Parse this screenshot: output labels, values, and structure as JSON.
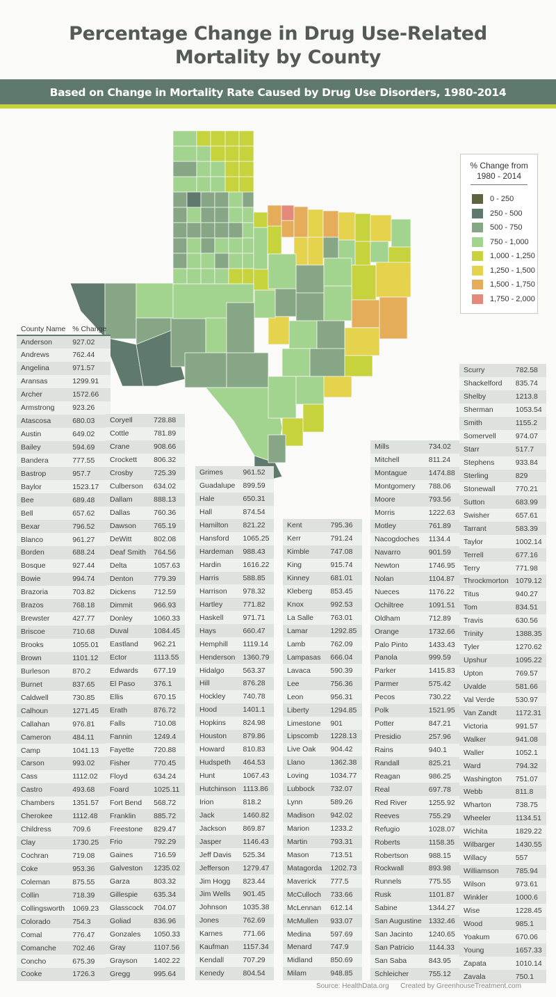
{
  "title_line1": "Percentage Change in Drug Use-Related",
  "title_line2": "Mortality by County",
  "subtitle": "Based on Change in Mortality Rate Caused by Drug Use Disorders, 1980-2014",
  "legend": {
    "title_line1": "% Change from",
    "title_line2": "1980 - 2014",
    "items": [
      {
        "label": "0 - 250",
        "color": "#5e6440"
      },
      {
        "label": "250 - 500",
        "color": "#5f7a6c"
      },
      {
        "label": "500 - 750",
        "color": "#86a686"
      },
      {
        "label": "750 - 1,000",
        "color": "#a3d48f"
      },
      {
        "label": "1,000 - 1,250",
        "color": "#c6d33c"
      },
      {
        "label": "1,250 - 1,500",
        "color": "#e5d24d"
      },
      {
        "label": "1,500 - 1,750",
        "color": "#e5ac5a"
      },
      {
        "label": "1,750 - 2,000",
        "color": "#e48a7a"
      }
    ]
  },
  "table_header": {
    "name": "County Name",
    "value": "% Change"
  },
  "footer": {
    "source": "Source: HealthData.org",
    "credit": "Created by GreenhouseTreatment.com"
  },
  "chart_data": {
    "type": "table",
    "title": "Percentage Change in Drug Use-Related Mortality by County",
    "subtitle": "Based on Change in Mortality Rate Caused by Drug Use Disorders, 1980-2014",
    "columns": [
      "County Name",
      "% Change"
    ],
    "map_legend_bins": [
      "0 - 250",
      "250 - 500",
      "500 - 750",
      "750 - 1,000",
      "1,000 - 1,250",
      "1,250 - 1,500",
      "1,500 - 1,750",
      "1,750 - 2,000"
    ],
    "table_columns": [
      [
        [
          "Anderson",
          "927.02"
        ],
        [
          "Andrews",
          "762.44"
        ],
        [
          "Angelina",
          "971.57"
        ],
        [
          "Aransas",
          "1299.91"
        ],
        [
          "Archer",
          "1572.66"
        ],
        [
          "Armstrong",
          "923.26"
        ],
        [
          "Atascosa",
          "680.03"
        ],
        [
          "Austin",
          "649.02"
        ],
        [
          "Bailey",
          "594.69"
        ],
        [
          "Bandera",
          "777.55"
        ],
        [
          "Bastrop",
          "957.7"
        ],
        [
          "Baylor",
          "1523.17"
        ],
        [
          "Bee",
          "689.48"
        ],
        [
          "Bell",
          "657.62"
        ],
        [
          "Bexar",
          "796.52"
        ],
        [
          "Blanco",
          "961.27"
        ],
        [
          "Borden",
          "688.24"
        ],
        [
          "Bosque",
          "927.44"
        ],
        [
          "Bowie",
          "994.74"
        ],
        [
          "Brazoria",
          "703.82"
        ],
        [
          "Brazos",
          "768.18"
        ],
        [
          "Brewster",
          "427.77"
        ],
        [
          "Briscoe",
          "710.68"
        ],
        [
          "Brooks",
          "1055.01"
        ],
        [
          "Brown",
          "1101.12"
        ],
        [
          "Burleson",
          "870.2"
        ],
        [
          "Burnet",
          "837.65"
        ],
        [
          "Caldwell",
          "730.85"
        ],
        [
          "Calhoun",
          "1271.45"
        ],
        [
          "Callahan",
          "976.81"
        ],
        [
          "Cameron",
          "484.11"
        ],
        [
          "Camp",
          "1041.13"
        ],
        [
          "Carson",
          "993.02"
        ],
        [
          "Cass",
          "1112.02"
        ],
        [
          "Castro",
          "493.68"
        ],
        [
          "Chambers",
          "1351.57"
        ],
        [
          "Cherokee",
          "1112.48"
        ],
        [
          "Childress",
          "709.6"
        ],
        [
          "Clay",
          "1730.25"
        ],
        [
          "Cochran",
          "719.08"
        ],
        [
          "Coke",
          "953.36"
        ],
        [
          "Coleman",
          "875.55"
        ],
        [
          "Collin",
          "718.39"
        ],
        [
          "Collingsworth",
          "1069.23"
        ],
        [
          "Colorado",
          "754.3"
        ],
        [
          "Comal",
          "776.47"
        ],
        [
          "Comanche",
          "702.46"
        ],
        [
          "Concho",
          "675.39"
        ],
        [
          "Cooke",
          "1726.3"
        ]
      ],
      [
        [
          "Coryell",
          "728.88"
        ],
        [
          "Cottle",
          "781.89"
        ],
        [
          "Crane",
          "908.66"
        ],
        [
          "Crockett",
          "806.32"
        ],
        [
          "Crosby",
          "725.39"
        ],
        [
          "Culberson",
          "634.02"
        ],
        [
          "Dallam",
          "888.13"
        ],
        [
          "Dallas",
          "760.36"
        ],
        [
          "Dawson",
          "765.19"
        ],
        [
          "DeWitt",
          "802.08"
        ],
        [
          "Deaf Smith",
          "764.56"
        ],
        [
          "Delta",
          "1057.63"
        ],
        [
          "Denton",
          "779.39"
        ],
        [
          "Dickens",
          "712.59"
        ],
        [
          "Dimmit",
          "966.93"
        ],
        [
          "Donley",
          "1060.33"
        ],
        [
          "Duval",
          "1084.45"
        ],
        [
          "Eastland",
          "962.21"
        ],
        [
          "Ector",
          "1113.55"
        ],
        [
          "Edwards",
          "677.19"
        ],
        [
          "El Paso",
          "376.1"
        ],
        [
          "Ellis",
          "670.15"
        ],
        [
          "Erath",
          "876.72"
        ],
        [
          "Falls",
          "710.08"
        ],
        [
          "Fannin",
          "1249.4"
        ],
        [
          "Fayette",
          "720.88"
        ],
        [
          "Fisher",
          "770.45"
        ],
        [
          "Floyd",
          "634.24"
        ],
        [
          "Foard",
          "1025.11"
        ],
        [
          "Fort Bend",
          "568.72"
        ],
        [
          "Franklin",
          "885.72"
        ],
        [
          "Freestone",
          "829.47"
        ],
        [
          "Frio",
          "792.29"
        ],
        [
          "Gaines",
          "716.59"
        ],
        [
          "Galveston",
          "1235.02"
        ],
        [
          "Garza",
          "803.32"
        ],
        [
          "Gillespie",
          "635.34"
        ],
        [
          "Glasscock",
          "704.07"
        ],
        [
          "Goliad",
          "836.96"
        ],
        [
          "Gonzales",
          "1050.33"
        ],
        [
          "Gray",
          "1107.56"
        ],
        [
          "Grayson",
          "1402.22"
        ],
        [
          "Gregg",
          "995.64"
        ]
      ],
      [
        [
          "Grimes",
          "961.52"
        ],
        [
          "Guadalupe",
          "899.59"
        ],
        [
          "Hale",
          "650.31"
        ],
        [
          "Hall",
          "874.54"
        ],
        [
          "Hamilton",
          "821.22"
        ],
        [
          "Hansford",
          "1065.25"
        ],
        [
          "Hardeman",
          "988.43"
        ],
        [
          "Hardin",
          "1616.22"
        ],
        [
          "Harris",
          "588.85"
        ],
        [
          "Harrison",
          "978.32"
        ],
        [
          "Hartley",
          "771.82"
        ],
        [
          "Haskell",
          "971.71"
        ],
        [
          "Hays",
          "660.47"
        ],
        [
          "Hemphill",
          "1119.14"
        ],
        [
          "Henderson",
          "1360.79"
        ],
        [
          "Hidalgo",
          "563.37"
        ],
        [
          "Hill",
          "876.28"
        ],
        [
          "Hockley",
          "740.78"
        ],
        [
          "Hood",
          "1401.1"
        ],
        [
          "Hopkins",
          "824.98"
        ],
        [
          "Houston",
          "879.86"
        ],
        [
          "Howard",
          "810.83"
        ],
        [
          "Hudspeth",
          "464.53"
        ],
        [
          "Hunt",
          "1067.43"
        ],
        [
          "Hutchinson",
          "1113.86"
        ],
        [
          "Irion",
          "818.2"
        ],
        [
          "Jack",
          "1460.82"
        ],
        [
          "Jackson",
          "869.87"
        ],
        [
          "Jasper",
          "1146.43"
        ],
        [
          "Jeff Davis",
          "525.34"
        ],
        [
          "Jefferson",
          "1279.47"
        ],
        [
          "Jim Hogg",
          "823.44"
        ],
        [
          "Jim Wells",
          "901.45"
        ],
        [
          "Johnson",
          "1035.38"
        ],
        [
          "Jones",
          "762.69"
        ],
        [
          "Karnes",
          "771.66"
        ],
        [
          "Kaufman",
          "1157.34"
        ],
        [
          "Kendall",
          "707.29"
        ],
        [
          "Kenedy",
          "804.54"
        ]
      ],
      [
        [
          "Kent",
          "795.36"
        ],
        [
          "Kerr",
          "791.24"
        ],
        [
          "Kimble",
          "747.08"
        ],
        [
          "King",
          "915.74"
        ],
        [
          "Kinney",
          "681.01"
        ],
        [
          "Kleberg",
          "853.45"
        ],
        [
          "Knox",
          "992.53"
        ],
        [
          "La Salle",
          "763.01"
        ],
        [
          "Lamar",
          "1292.85"
        ],
        [
          "Lamb",
          "762.09"
        ],
        [
          "Lampasas",
          "666.04"
        ],
        [
          "Lavaca",
          "590.39"
        ],
        [
          "Lee",
          "756.36"
        ],
        [
          "Leon",
          "956.31"
        ],
        [
          "Liberty",
          "1294.85"
        ],
        [
          "Limestone",
          "901"
        ],
        [
          "Lipscomb",
          "1228.13"
        ],
        [
          "Live Oak",
          "904.42"
        ],
        [
          "Llano",
          "1362.38"
        ],
        [
          "Loving",
          "1034.77"
        ],
        [
          "Lubbock",
          "732.07"
        ],
        [
          "Lynn",
          "589.26"
        ],
        [
          "Madison",
          "942.02"
        ],
        [
          "Marion",
          "1233.2"
        ],
        [
          "Martin",
          "793.31"
        ],
        [
          "Mason",
          "713.51"
        ],
        [
          "Matagorda",
          "1202.73"
        ],
        [
          "Maverick",
          "777.5"
        ],
        [
          "McCulloch",
          "733.66"
        ],
        [
          "McLennan",
          "612.14"
        ],
        [
          "McMullen",
          "933.07"
        ],
        [
          "Medina",
          "597.69"
        ],
        [
          "Menard",
          "747.9"
        ],
        [
          "Midland",
          "850.69"
        ],
        [
          "Milam",
          "948.85"
        ]
      ],
      [
        [
          "Mills",
          "734.02"
        ],
        [
          "Mitchell",
          "811.24"
        ],
        [
          "Montague",
          "1474.88"
        ],
        [
          "Montgomery",
          "788.06"
        ],
        [
          "Moore",
          "793.56"
        ],
        [
          "Morris",
          "1222.63"
        ],
        [
          "Motley",
          "761.89"
        ],
        [
          "Nacogdoches",
          "1134.4"
        ],
        [
          "Navarro",
          "901.59"
        ],
        [
          "Newton",
          "1746.95"
        ],
        [
          "Nolan",
          "1104.87"
        ],
        [
          "Nueces",
          "1176.22"
        ],
        [
          "Ochiltree",
          "1091.51"
        ],
        [
          "Oldham",
          "712.89"
        ],
        [
          "Orange",
          "1732.66"
        ],
        [
          "Palo Pinto",
          "1433.43"
        ],
        [
          "Panola",
          "999.59"
        ],
        [
          "Parker",
          "1415.83"
        ],
        [
          "Parmer",
          "575.42"
        ],
        [
          "Pecos",
          "730.22"
        ],
        [
          "Polk",
          "1521.95"
        ],
        [
          "Potter",
          "847.21"
        ],
        [
          "Presidio",
          "257.96"
        ],
        [
          "Rains",
          "940.1"
        ],
        [
          "Randall",
          "825.21"
        ],
        [
          "Reagan",
          "986.25"
        ],
        [
          "Real",
          "697.78"
        ],
        [
          "Red River",
          "1255.92"
        ],
        [
          "Reeves",
          "755.29"
        ],
        [
          "Refugio",
          "1028.07"
        ],
        [
          "Roberts",
          "1158.35"
        ],
        [
          "Robertson",
          "988.15"
        ],
        [
          "Rockwall",
          "893.98"
        ],
        [
          "Runnels",
          "775.55"
        ],
        [
          "Rusk",
          "1101.87"
        ],
        [
          "Sabine",
          "1344.27"
        ],
        [
          "San Augustine",
          "1332.46"
        ],
        [
          "San Jacinto",
          "1240.65"
        ],
        [
          "San Patricio",
          "1144.33"
        ],
        [
          "San Saba",
          "843.95"
        ],
        [
          "Schleicher",
          "755.12"
        ]
      ],
      [
        [
          "Scurry",
          "782.58"
        ],
        [
          "Shackelford",
          "835.74"
        ],
        [
          "Shelby",
          "1213.8"
        ],
        [
          "Sherman",
          "1053.54"
        ],
        [
          "Smith",
          "1155.2"
        ],
        [
          "Somervell",
          "974.07"
        ],
        [
          "Starr",
          "517.7"
        ],
        [
          "Stephens",
          "933.84"
        ],
        [
          "Sterling",
          "829"
        ],
        [
          "Stonewall",
          "770.21"
        ],
        [
          "Sutton",
          "683.99"
        ],
        [
          "Swisher",
          "657.61"
        ],
        [
          "Tarrant",
          "583.39"
        ],
        [
          "Taylor",
          "1002.14"
        ],
        [
          "Terrell",
          "677.16"
        ],
        [
          "Terry",
          "771.98"
        ],
        [
          "Throckmorton",
          "1079.12"
        ],
        [
          "Titus",
          "940.27"
        ],
        [
          "Tom",
          "834.51"
        ],
        [
          "Travis",
          "630.56"
        ],
        [
          "Trinity",
          "1388.35"
        ],
        [
          "Tyler",
          "1270.62"
        ],
        [
          "Upshur",
          "1095.22"
        ],
        [
          "Upton",
          "769.57"
        ],
        [
          "Uvalde",
          "581.66"
        ],
        [
          "Val Verde",
          "530.97"
        ],
        [
          "Van Zandt",
          "1172.31"
        ],
        [
          "Victoria",
          "991.57"
        ],
        [
          "Walker",
          "941.08"
        ],
        [
          "Waller",
          "1052.1"
        ],
        [
          "Ward",
          "794.32"
        ],
        [
          "Washington",
          "751.07"
        ],
        [
          "Webb",
          "811.8"
        ],
        [
          "Wharton",
          "738.75"
        ],
        [
          "Wheeler",
          "1134.51"
        ],
        [
          "Wichita",
          "1829.22"
        ],
        [
          "Wilbarger",
          "1430.55"
        ],
        [
          "Willacy",
          "557"
        ],
        [
          "Williamson",
          "785.94"
        ],
        [
          "Wilson",
          "973.61"
        ],
        [
          "Winkler",
          "1000.6"
        ],
        [
          "Wise",
          "1228.45"
        ],
        [
          "Wood",
          "985.1"
        ],
        [
          "Yoakum",
          "670.06"
        ],
        [
          "Young",
          "1657.33"
        ],
        [
          "Zapata",
          "1010.14"
        ],
        [
          "Zavala",
          "750.1"
        ]
      ]
    ]
  }
}
